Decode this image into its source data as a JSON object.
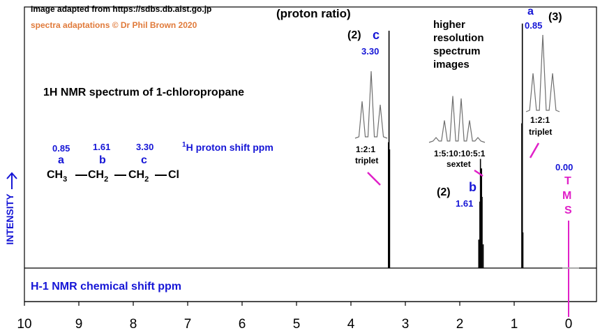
{
  "credits": {
    "source": "Image adapted from https://sdbs.db.aist.go.jp",
    "copyright": "spectra adaptations © Dr Phil Brown 2020"
  },
  "title": "1H NMR spectrum of 1-chloropropane",
  "proton_ratio_label": "(proton ratio)",
  "higher_resolution_label": [
    "higher",
    "resolution",
    "spectrum",
    "images"
  ],
  "molecule": {
    "shifts": [
      "0.85",
      "1.61",
      "3.30"
    ],
    "letters": [
      "a",
      "b",
      "c"
    ],
    "groups": [
      {
        "main": "CH",
        "sub": "3"
      },
      {
        "main": "CH",
        "sub": "2"
      },
      {
        "main": "CH",
        "sub": "2"
      }
    ],
    "end": "Cl",
    "proton_shift_sup": "1",
    "proton_shift_text": "H  proton shift  ppm"
  },
  "peaks": [
    {
      "letter": "c",
      "shift": "3.30",
      "ratio": "(2)",
      "pattern": "1:2:1",
      "multiplicity": "triplet"
    },
    {
      "letter": "b",
      "shift": "1.61",
      "ratio": "(2)",
      "pattern": "1:5:10:10:5:1",
      "multiplicity": "sextet"
    },
    {
      "letter": "a",
      "shift": "0.85",
      "ratio": "(3)",
      "pattern": "1:2:1",
      "multiplicity": "triplet"
    }
  ],
  "tms": {
    "shift": "0.00",
    "letters": [
      "T",
      "M",
      "S"
    ]
  },
  "y_axis_label": "INTENSITY",
  "x_axis_label": "H-1 NMR chemical shift  ppm",
  "colors": {
    "label_blue": "#1515d6",
    "credit_orange": "#e07a3a",
    "tms_magenta": "#e020c8",
    "pointer_magenta": "#e020c8"
  },
  "chart_data": {
    "type": "line",
    "xlabel": "H-1 NMR chemical shift  ppm",
    "ylabel": "INTENSITY",
    "xlim": [
      10,
      -0.5
    ],
    "x_reversed": true,
    "ticks": [
      10,
      9,
      8,
      7,
      6,
      5,
      4,
      3,
      2,
      1,
      0
    ],
    "tick_labels": [
      "10",
      "9",
      "8",
      "7",
      "6",
      "5",
      "4",
      "3",
      "2",
      "1",
      "0"
    ],
    "grid": false,
    "peaks": [
      {
        "label": "c",
        "center": 3.3,
        "lines": [
          3.31,
          3.3,
          3.29
        ],
        "heights": [
          0.53,
          1.0,
          0.5
        ]
      },
      {
        "label": "b",
        "center": 1.61,
        "lines": [
          1.65,
          1.63,
          1.62,
          1.6,
          1.59,
          1.57
        ],
        "heights": [
          0.12,
          0.28,
          0.46,
          0.42,
          0.3,
          0.1
        ]
      },
      {
        "label": "a",
        "center": 0.85,
        "lines": [
          0.86,
          0.85,
          0.84
        ],
        "heights": [
          0.61,
          1.03,
          0.15
        ]
      },
      {
        "label": "TMS",
        "center": 0.0,
        "lines": [
          0.0
        ],
        "heights": [
          0.0
        ]
      }
    ],
    "insets": [
      {
        "label": "c",
        "pattern": "1:2:1",
        "lines": [
          0.55,
          1.0,
          0.5
        ]
      },
      {
        "label": "b",
        "pattern": "1:5:10:10:5:1",
        "lines": [
          0.1,
          0.45,
          0.95,
          0.9,
          0.45,
          0.1
        ]
      },
      {
        "label": "a",
        "pattern": "1:2:1",
        "lines": [
          0.5,
          1.0,
          0.5
        ]
      }
    ]
  }
}
